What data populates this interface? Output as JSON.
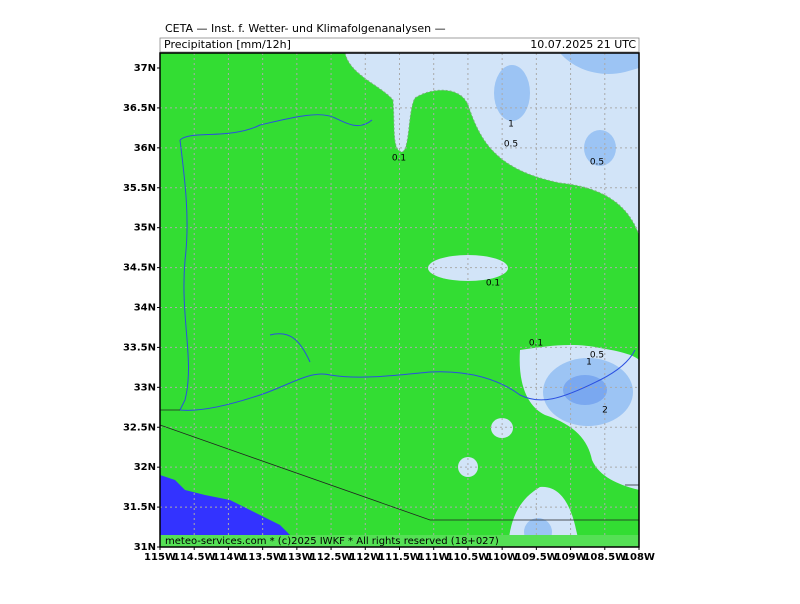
{
  "header": {
    "title": "CETA — Inst. f. Wetter- und Klimafolgenanalysen —",
    "variable": "Precipitation [mm/12h]",
    "valid": "10.07.2025 21 UTC"
  },
  "map": {
    "lat_ticks": [
      "37N",
      "36.5N",
      "36N",
      "35.5N",
      "35N",
      "34.5N",
      "34N",
      "33.5N",
      "33N",
      "32.5N",
      "32N",
      "31.5N",
      "31N"
    ],
    "lon_ticks": [
      "115W",
      "114.5W",
      "114W",
      "113.5W",
      "113W",
      "112.5W",
      "112W",
      "111.5W",
      "111W",
      "110.5W",
      "110W",
      "109.5W",
      "109W",
      "108.5W",
      "108W"
    ],
    "contour_labels": [
      "1",
      "0.5",
      "0.5",
      "0.1",
      "0.1",
      "0.1",
      "0.5",
      "1",
      "2"
    ]
  },
  "footer": "meteo-services.com * (c)2025 IWKF * All rights reserved (18+027)"
}
